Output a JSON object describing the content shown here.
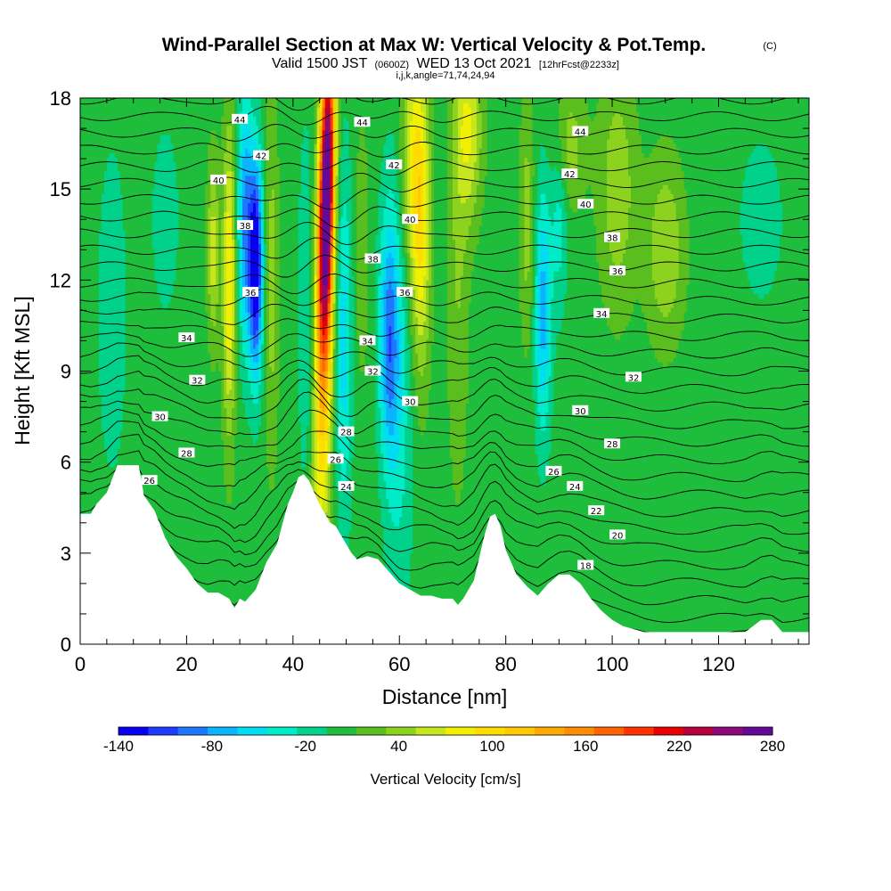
{
  "header": {
    "title": "Wind-Parallel Section at Max W: Vertical Velocity & Pot.Temp.",
    "copyright": "(C)",
    "valid_prefix": "Valid 1500 JST",
    "valid_utc": "(0600Z)",
    "valid_date": "WED 13 Oct 2021",
    "forecast": "[12hrFcst@2233z]",
    "indices": "i,j,k,angle=71,74,24,94"
  },
  "chart_data": {
    "type": "heatmap",
    "title": "Wind-Parallel Section at Max W: Vertical Velocity & Pot.Temp.",
    "xlabel": "Distance [nm]",
    "ylabel": "Height [Kft MSL]",
    "xlim": [
      0,
      137
    ],
    "ylim": [
      0,
      18
    ],
    "x_ticks": [
      "0",
      "20",
      "40",
      "60",
      "80",
      "100",
      "120"
    ],
    "y_ticks": [
      "0",
      "3",
      "6",
      "9",
      "12",
      "15",
      "18"
    ],
    "colorbar": {
      "label": "Vertical Velocity [cm/s]",
      "tick_labels": [
        "-140",
        "-80",
        "-20",
        "40",
        "100",
        "160",
        "220",
        "280"
      ],
      "levels": [
        -140,
        -120,
        -100,
        -80,
        -60,
        -40,
        -20,
        0,
        20,
        40,
        60,
        80,
        100,
        120,
        140,
        160,
        180,
        200,
        220,
        240,
        260,
        280
      ],
      "colors": [
        "#0a00f0",
        "#1e3cff",
        "#1e78ff",
        "#0ab4ff",
        "#00dcf0",
        "#00ebc8",
        "#00d28c",
        "#1ebe3c",
        "#5abe1e",
        "#8cd21e",
        "#c8e61e",
        "#f0f000",
        "#ffdc00",
        "#ffc800",
        "#ffaa00",
        "#ff8c00",
        "#ff6400",
        "#ff3200",
        "#e60000",
        "#b4003c",
        "#8c0a78",
        "#640a96"
      ]
    },
    "terrain_kft": [
      [
        0,
        4.3
      ],
      [
        2,
        4.3
      ],
      [
        3,
        4.6
      ],
      [
        5,
        5.0
      ],
      [
        7,
        5.9
      ],
      [
        9,
        5.9
      ],
      [
        11,
        5.9
      ],
      [
        12,
        4.9
      ],
      [
        14,
        4.4
      ],
      [
        16,
        3.5
      ],
      [
        18,
        2.9
      ],
      [
        20,
        2.5
      ],
      [
        22,
        2.0
      ],
      [
        24,
        1.7
      ],
      [
        26,
        1.7
      ],
      [
        28,
        1.5
      ],
      [
        29,
        1.2
      ],
      [
        30,
        1.5
      ],
      [
        31,
        1.4
      ],
      [
        33,
        1.8
      ],
      [
        35,
        2.7
      ],
      [
        37,
        3.3
      ],
      [
        39,
        4.6
      ],
      [
        40,
        5.0
      ],
      [
        41,
        5.5
      ],
      [
        42,
        5.6
      ],
      [
        43,
        5.4
      ],
      [
        45,
        4.6
      ],
      [
        47,
        4.0
      ],
      [
        48,
        3.9
      ],
      [
        49,
        3.6
      ],
      [
        50,
        3.3
      ],
      [
        51,
        3.0
      ],
      [
        52,
        2.8
      ],
      [
        54,
        2.9
      ],
      [
        56,
        2.8
      ],
      [
        58,
        2.4
      ],
      [
        60,
        2.0
      ],
      [
        62,
        1.8
      ],
      [
        64,
        1.6
      ],
      [
        66,
        1.6
      ],
      [
        68,
        1.5
      ],
      [
        70,
        1.5
      ],
      [
        71,
        1.3
      ],
      [
        72,
        1.5
      ],
      [
        74,
        2.1
      ],
      [
        76,
        3.6
      ],
      [
        77,
        4.2
      ],
      [
        78,
        4.3
      ],
      [
        79,
        3.9
      ],
      [
        80,
        3.1
      ],
      [
        82,
        2.3
      ],
      [
        84,
        1.9
      ],
      [
        86,
        1.6
      ],
      [
        88,
        2.0
      ],
      [
        90,
        2.3
      ],
      [
        92,
        2.3
      ],
      [
        94,
        2.0
      ],
      [
        96,
        1.5
      ],
      [
        98,
        1.1
      ],
      [
        100,
        0.8
      ],
      [
        102,
        0.6
      ],
      [
        104,
        0.5
      ],
      [
        106,
        0.4
      ],
      [
        110,
        0.4
      ],
      [
        115,
        0.4
      ],
      [
        120,
        0.4
      ],
      [
        125,
        0.4
      ],
      [
        128,
        0.8
      ],
      [
        130,
        0.8
      ],
      [
        132,
        0.4
      ],
      [
        137,
        0.4
      ]
    ],
    "contour_labels": [
      {
        "text": "44",
        "x": 30,
        "y": 17.3
      },
      {
        "text": "42",
        "x": 34,
        "y": 16.1
      },
      {
        "text": "40",
        "x": 26,
        "y": 15.3
      },
      {
        "text": "38",
        "x": 31,
        "y": 13.8
      },
      {
        "text": "36",
        "x": 32,
        "y": 11.6
      },
      {
        "text": "34",
        "x": 20,
        "y": 10.1
      },
      {
        "text": "32",
        "x": 22,
        "y": 8.7
      },
      {
        "text": "30",
        "x": 15,
        "y": 7.5
      },
      {
        "text": "28",
        "x": 20,
        "y": 6.3
      },
      {
        "text": "26",
        "x": 13,
        "y": 5.4
      },
      {
        "text": "44",
        "x": 53,
        "y": 17.2
      },
      {
        "text": "42",
        "x": 59,
        "y": 15.8
      },
      {
        "text": "40",
        "x": 62,
        "y": 14.0
      },
      {
        "text": "38",
        "x": 55,
        "y": 12.7
      },
      {
        "text": "36",
        "x": 61,
        "y": 11.6
      },
      {
        "text": "34",
        "x": 54,
        "y": 10.0
      },
      {
        "text": "32",
        "x": 55,
        "y": 9.0
      },
      {
        "text": "30",
        "x": 62,
        "y": 8.0
      },
      {
        "text": "28",
        "x": 50,
        "y": 7.0
      },
      {
        "text": "26",
        "x": 48,
        "y": 6.1
      },
      {
        "text": "24",
        "x": 50,
        "y": 5.2
      },
      {
        "text": "44",
        "x": 94,
        "y": 16.9
      },
      {
        "text": "42",
        "x": 92,
        "y": 15.5
      },
      {
        "text": "40",
        "x": 95,
        "y": 14.5
      },
      {
        "text": "38",
        "x": 100,
        "y": 13.4
      },
      {
        "text": "36",
        "x": 101,
        "y": 12.3
      },
      {
        "text": "34",
        "x": 98,
        "y": 10.9
      },
      {
        "text": "32",
        "x": 104,
        "y": 8.8
      },
      {
        "text": "30",
        "x": 94,
        "y": 7.7
      },
      {
        "text": "28",
        "x": 100,
        "y": 6.6
      },
      {
        "text": "26",
        "x": 89,
        "y": 5.7
      },
      {
        "text": "24",
        "x": 93,
        "y": 5.2
      },
      {
        "text": "22",
        "x": 97,
        "y": 4.4
      },
      {
        "text": "20",
        "x": 101,
        "y": 3.6
      },
      {
        "text": "18",
        "x": 95,
        "y": 2.6
      }
    ]
  }
}
